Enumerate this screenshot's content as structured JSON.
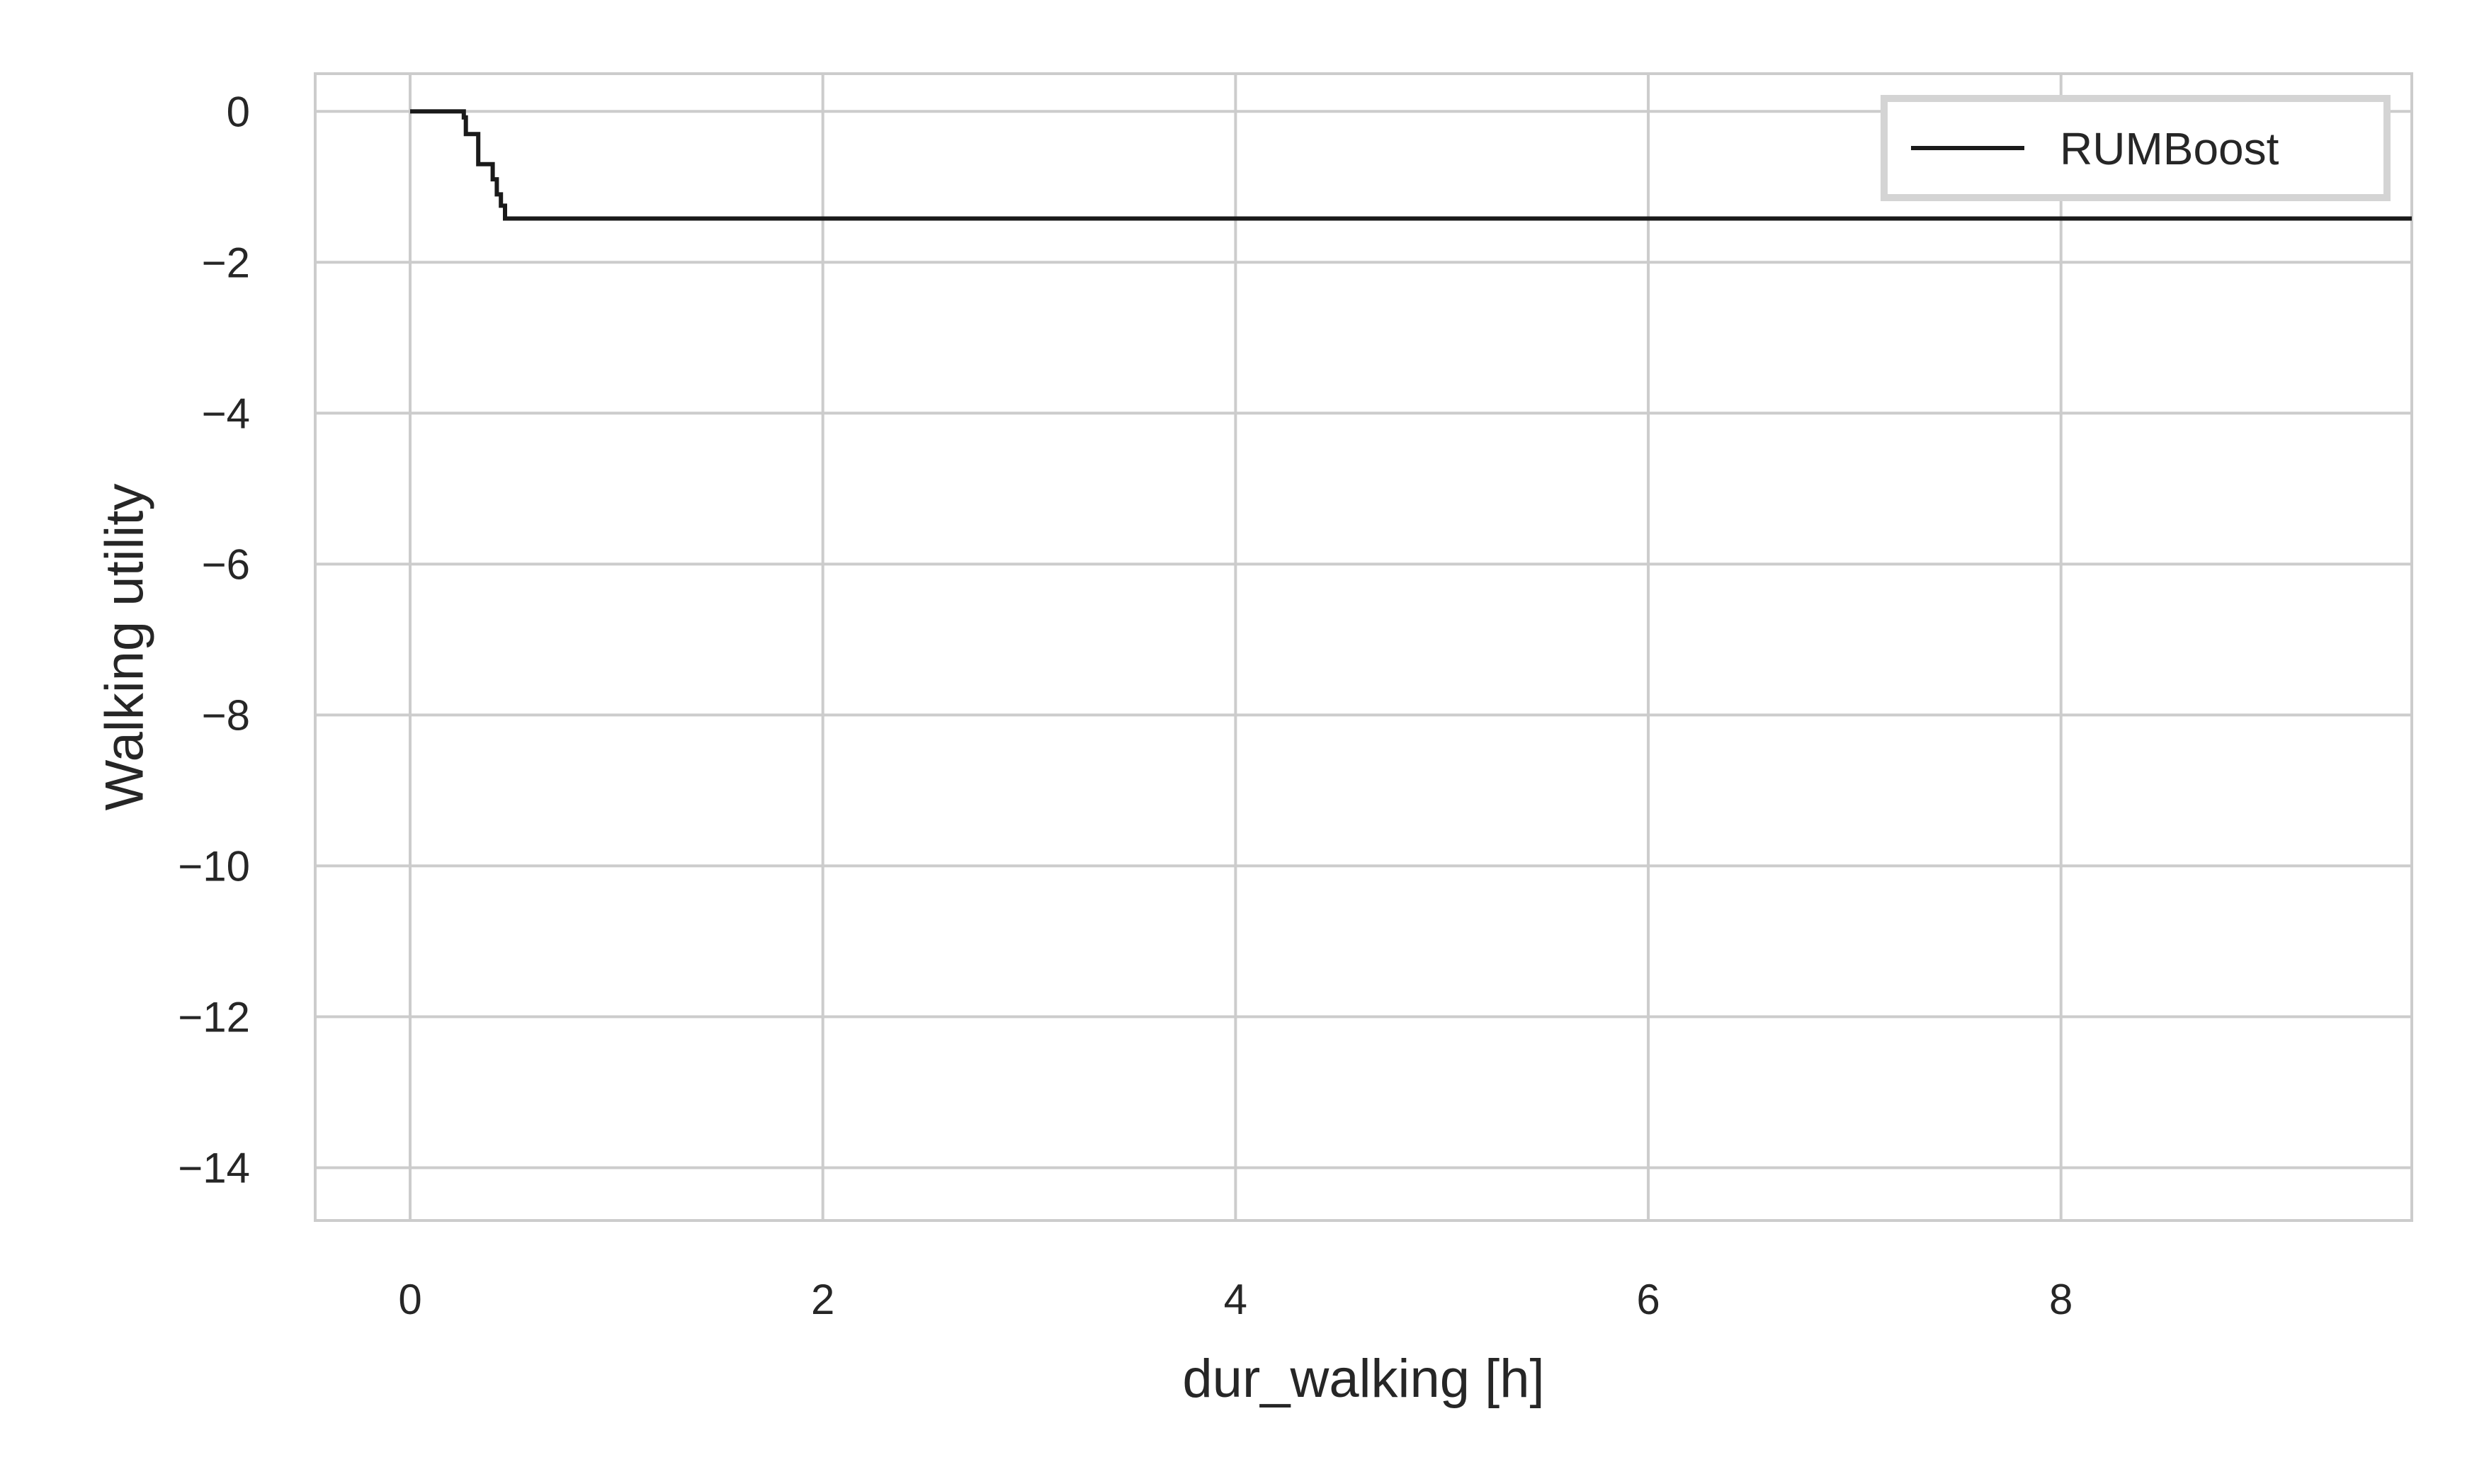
{
  "chart_data": {
    "type": "line",
    "title": "",
    "xlabel": "dur_walking [h]",
    "ylabel": "Walking utility",
    "xlim": [
      -0.46,
      9.7
    ],
    "ylim": [
      -14.7,
      0.5
    ],
    "xticks": [
      0,
      2,
      4,
      6,
      8
    ],
    "xtick_labels": [
      "0",
      "2",
      "4",
      "6",
      "8"
    ],
    "yticks": [
      0,
      -2,
      -4,
      -6,
      -8,
      -10,
      -12,
      -14
    ],
    "ytick_labels": [
      "0",
      "−2",
      "−4",
      "−6",
      "−8",
      "−10",
      "−12",
      "−14"
    ],
    "grid": true,
    "legend_position": "top-right",
    "series": [
      {
        "name": "RUMBoost",
        "color": "#1a1a1a",
        "step": true,
        "x": [
          0.0,
          0.25,
          0.26,
          0.27,
          0.32,
          0.33,
          0.38,
          0.4,
          0.42,
          0.44,
          0.46,
          9.7
        ],
        "y": [
          0.0,
          0.0,
          -0.08,
          -0.3,
          -0.3,
          -0.7,
          -0.7,
          -0.9,
          -1.1,
          -1.25,
          -1.42,
          -1.42
        ]
      }
    ]
  }
}
